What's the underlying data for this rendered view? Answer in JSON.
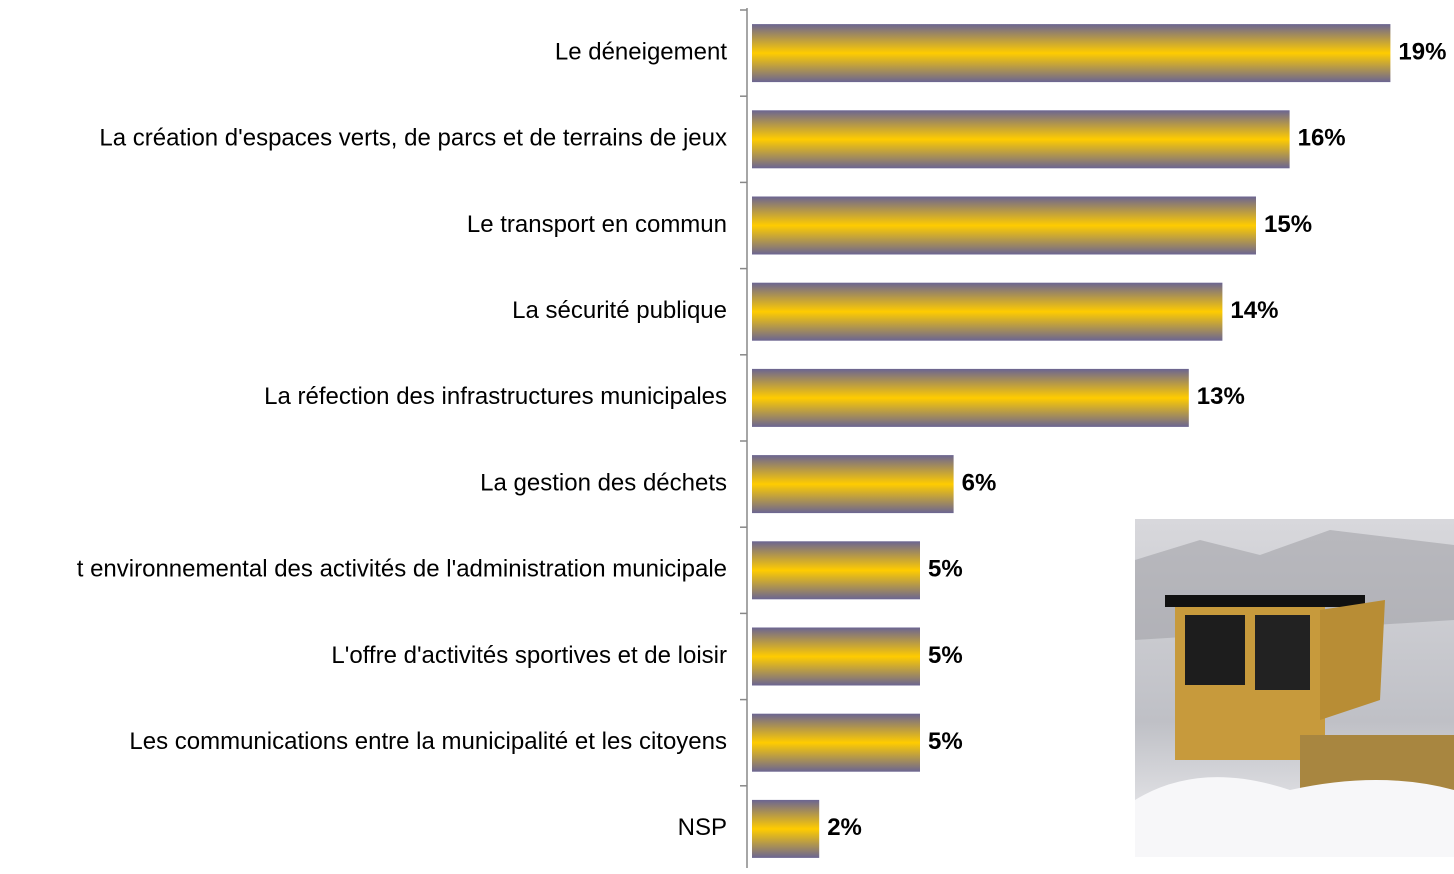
{
  "chart_data": {
    "type": "bar",
    "orientation": "horizontal",
    "categories": [
      "Le déneigement",
      "La création d'espaces verts, de parcs et de terrains de jeux",
      "Le transport en commun",
      "La sécurité publique",
      "La réfection des infrastructures municipales",
      "La gestion des déchets",
      "t environnemental des activités de l'administration municipale",
      "L'offre d'activités sportives et de loisir",
      "Les communications entre la municipalité et les citoyens",
      "NSP"
    ],
    "values": [
      19,
      16,
      15,
      14,
      13,
      6,
      5,
      5,
      5,
      2
    ],
    "value_labels": [
      "19%",
      "16%",
      "15%",
      "14%",
      "13%",
      "6%",
      "5%",
      "5%",
      "5%",
      "2%"
    ],
    "colors": [
      "#6b6592",
      "#ffcc00"
    ]
  }
}
